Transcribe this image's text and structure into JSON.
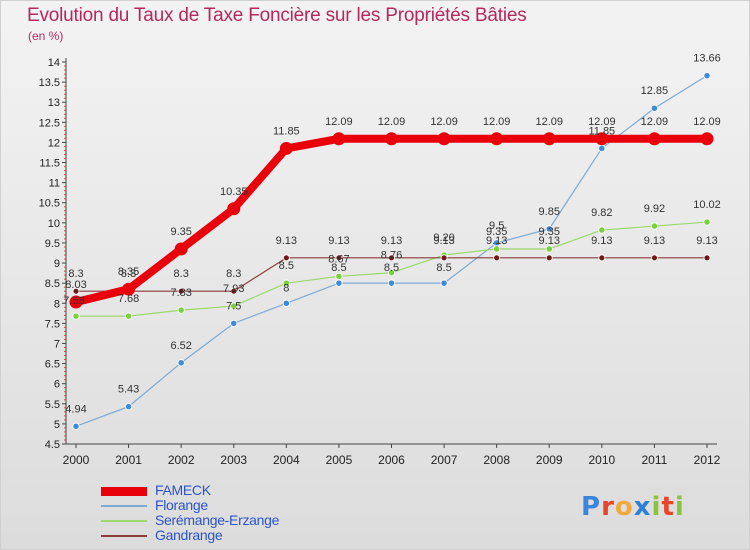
{
  "header": {
    "title": "Evolution du Taux de Taxe Foncière sur les Propriétés Bâties",
    "unit": "(en %)"
  },
  "logo": {
    "text": "Proxiti",
    "letters": [
      "P",
      "r",
      "o",
      "x",
      "i",
      "t",
      "i"
    ],
    "colors": [
      "#3a86d8",
      "#e8452c",
      "#f2a93b",
      "#2f7fd6",
      "#8ac43f",
      "#e8452c",
      "#8ac43f"
    ]
  },
  "chart_data": {
    "type": "line",
    "title": "Evolution du Taux de Taxe Foncière sur les Propriétés Bâties",
    "ylabel": "(en %)",
    "xlabel": "",
    "x": [
      "2000",
      "2001",
      "2002",
      "2003",
      "2004",
      "2005",
      "2006",
      "2007",
      "2008",
      "2009",
      "2010",
      "2011",
      "2012"
    ],
    "ylim": [
      4.5,
      14
    ],
    "yticks": [
      "4.5",
      "5",
      "5.5",
      "6",
      "6.5",
      "7",
      "7.5",
      "8",
      "8.5",
      "9",
      "9.5",
      "10",
      "10.5",
      "11",
      "11.5",
      "12",
      "12.5",
      "13",
      "13.5",
      "14"
    ],
    "grid": false,
    "legend_position": "bottom-left",
    "series": [
      {
        "name": "FAMECK",
        "color": "#e8000b",
        "values": [
          8.03,
          8.35,
          9.35,
          10.35,
          11.85,
          12.09,
          12.09,
          12.09,
          12.09,
          12.09,
          12.09,
          12.09,
          12.09
        ],
        "labels": [
          "8.03",
          "8.35",
          "9.35",
          "10.35",
          "11.85",
          "12.09",
          "12.09",
          "12.09",
          "12.09",
          "12.09",
          "12.09",
          "12.09",
          "12.09"
        ]
      },
      {
        "name": "Florange",
        "color": "#7fa9d2",
        "values": [
          4.94,
          5.43,
          6.52,
          7.5,
          8,
          8.5,
          8.5,
          8.5,
          9.5,
          9.85,
          11.85,
          12.85,
          13.66
        ],
        "labels": [
          "4.94",
          "5.43",
          "6.52",
          "7.5",
          "8",
          "8.5",
          "8.5",
          "8.5",
          "9.5",
          "9.85",
          "11.85",
          "12.85",
          "13.66"
        ]
      },
      {
        "name": "Serémange-Erzange",
        "color": "#9ad96b",
        "values": [
          7.68,
          7.68,
          7.83,
          7.93,
          8.5,
          8.67,
          8.76,
          9.2,
          9.35,
          9.35,
          9.82,
          9.92,
          10.02
        ],
        "labels": [
          "7.68",
          "7.68",
          "7.83",
          "7.93",
          "8.5",
          "8.67",
          "8.76",
          "9.20",
          "9.35",
          "9.35",
          "9.82",
          "9.92",
          "10.02"
        ]
      },
      {
        "name": "Gandrange",
        "color": "#8b3a3a",
        "values": [
          8.3,
          8.3,
          8.3,
          8.3,
          9.13,
          9.13,
          9.13,
          9.13,
          9.13,
          9.13,
          9.13,
          9.13,
          9.13
        ],
        "labels": [
          "8.3",
          "8.3",
          "8.3",
          "8.3",
          "9.13",
          "9.13",
          "9.13",
          "9.13",
          "9.13",
          "9.13",
          "9.13",
          "9.13",
          "9.13"
        ]
      }
    ]
  }
}
